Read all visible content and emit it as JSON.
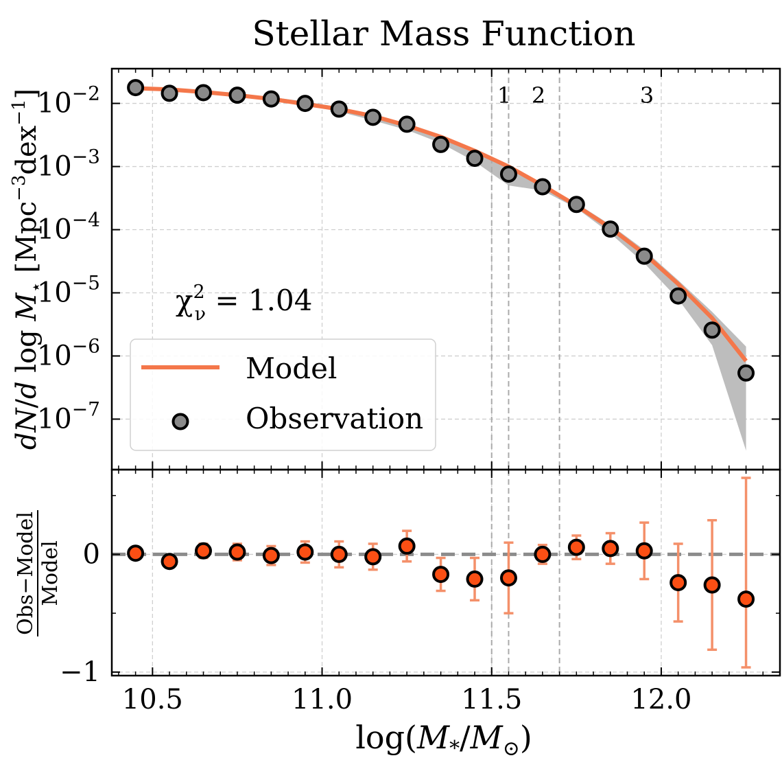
{
  "chart_data": {
    "type": "scatter",
    "title": "Stellar Mass Function",
    "xlabel": "log(M*/M⊙)",
    "xlim": [
      10.38,
      12.35
    ],
    "x_ticks": [
      10.5,
      11.0,
      11.5,
      12.0
    ],
    "x_tick_labels": [
      "10.5",
      "11.0",
      "11.5",
      "12.0"
    ],
    "top_panel": {
      "ylabel": "dN/d log M⋆ [Mpc⁻³dex⁻¹]",
      "yscale": "log",
      "ylim_log10": [
        -7.8,
        -1.45
      ],
      "y_ticks_log10": [
        -2,
        -3,
        -4,
        -5,
        -6,
        -7
      ],
      "y_tick_labels": [
        {
          "base": "10",
          "exp": "−2",
          "log": -2
        },
        {
          "base": "10",
          "exp": "−3",
          "log": -3
        },
        {
          "base": "10",
          "exp": "−4",
          "log": -4
        },
        {
          "base": "10",
          "exp": "−5",
          "log": -5
        },
        {
          "base": "10",
          "exp": "−6",
          "log": -6
        },
        {
          "base": "10",
          "exp": "−7",
          "log": -7
        }
      ],
      "annotation": {
        "text": "χ²ᵥ = 1.04",
        "main": "χ",
        "sup": "2",
        "sub": "ν",
        "rest": " = 1.04"
      },
      "legend": {
        "placement": "lower-left",
        "entries": [
          {
            "label": "Model",
            "kind": "line"
          },
          {
            "label": "Observation",
            "kind": "marker"
          }
        ]
      },
      "series": [
        {
          "name": "Observation",
          "x": [
            10.45,
            10.55,
            10.65,
            10.75,
            10.85,
            10.95,
            11.05,
            11.15,
            11.25,
            11.35,
            11.45,
            11.55,
            11.65,
            11.75,
            11.85,
            11.95,
            12.05,
            12.15,
            12.25
          ],
          "y_log10": [
            -1.75,
            -1.84,
            -1.83,
            -1.87,
            -1.93,
            -2.0,
            -2.09,
            -2.22,
            -2.33,
            -2.65,
            -2.87,
            -3.12,
            -3.32,
            -3.6,
            -3.99,
            -4.42,
            -5.05,
            -5.59,
            -6.27
          ]
        },
        {
          "name": "Model",
          "x": [
            10.45,
            10.55,
            10.65,
            10.75,
            10.85,
            10.95,
            11.05,
            11.15,
            11.25,
            11.35,
            11.45,
            11.55,
            11.65,
            11.75,
            11.85,
            11.95,
            12.05,
            12.15,
            12.25
          ],
          "y_log10": [
            -1.76,
            -1.78,
            -1.82,
            -1.87,
            -1.93,
            -2.01,
            -2.09,
            -2.2,
            -2.35,
            -2.53,
            -2.75,
            -3.0,
            -3.3,
            -3.62,
            -3.97,
            -4.38,
            -4.86,
            -5.4,
            -6.08
          ]
        }
      ],
      "uncertainty_band": {
        "x": [
          10.45,
          10.55,
          10.65,
          10.75,
          10.85,
          10.95,
          11.05,
          11.15,
          11.25,
          11.35,
          11.45,
          11.55,
          11.65,
          11.75,
          11.85,
          11.95,
          12.05,
          12.15,
          12.25
        ],
        "upper_log10": [
          -1.74,
          -1.78,
          -1.81,
          -1.85,
          -1.9,
          -1.97,
          -2.06,
          -2.18,
          -2.32,
          -2.51,
          -2.73,
          -2.98,
          -3.27,
          -3.58,
          -3.92,
          -4.32,
          -4.8,
          -5.3,
          -5.85
        ],
        "lower_log10": [
          -1.78,
          -1.8,
          -1.84,
          -1.89,
          -1.95,
          -2.03,
          -2.13,
          -2.27,
          -2.42,
          -2.63,
          -2.92,
          -3.3,
          -3.38,
          -3.66,
          -4.06,
          -4.53,
          -5.1,
          -5.83,
          -7.5
        ]
      },
      "vertical_lines": [
        {
          "x": 11.5,
          "label": "1"
        },
        {
          "x": 11.55,
          "label": "2"
        },
        {
          "x": 11.7,
          "label": "3"
        }
      ]
    },
    "bottom_panel": {
      "ylabel": "Obs−Model / Model",
      "ylabel_num": "Obs−Model",
      "ylabel_den": "Model",
      "ylim": [
        -1.03,
        0.72
      ],
      "y_ticks": [
        0,
        -1
      ],
      "y_tick_labels": [
        "0",
        "−1"
      ],
      "reference_line": 0,
      "series": [
        {
          "name": "Residual",
          "x": [
            10.45,
            10.55,
            10.65,
            10.75,
            10.85,
            10.95,
            11.05,
            11.15,
            11.25,
            11.35,
            11.45,
            11.55,
            11.65,
            11.75,
            11.85,
            11.95,
            12.05,
            12.15,
            12.25
          ],
          "y": [
            0.01,
            -0.06,
            0.03,
            0.02,
            -0.01,
            0.02,
            0.0,
            -0.02,
            0.07,
            -0.17,
            -0.21,
            -0.2,
            0.0,
            0.06,
            0.05,
            0.03,
            -0.24,
            -0.26,
            -0.38
          ],
          "err": [
            0.04,
            0.04,
            0.06,
            0.07,
            0.08,
            0.09,
            0.11,
            0.11,
            0.13,
            0.14,
            0.18,
            0.3,
            0.08,
            0.1,
            0.13,
            0.24,
            0.33,
            0.55,
            1.05
          ]
        }
      ]
    },
    "grid": true,
    "colors": {
      "model": "#f4774a",
      "marker_fill": "#8a8a8a",
      "residual_fill": "#fb4f14",
      "errorbar": "#f4906a",
      "band": "#bdbdbd",
      "vline": "#aaaaaa",
      "zero_line": "#8c8c8c"
    }
  }
}
